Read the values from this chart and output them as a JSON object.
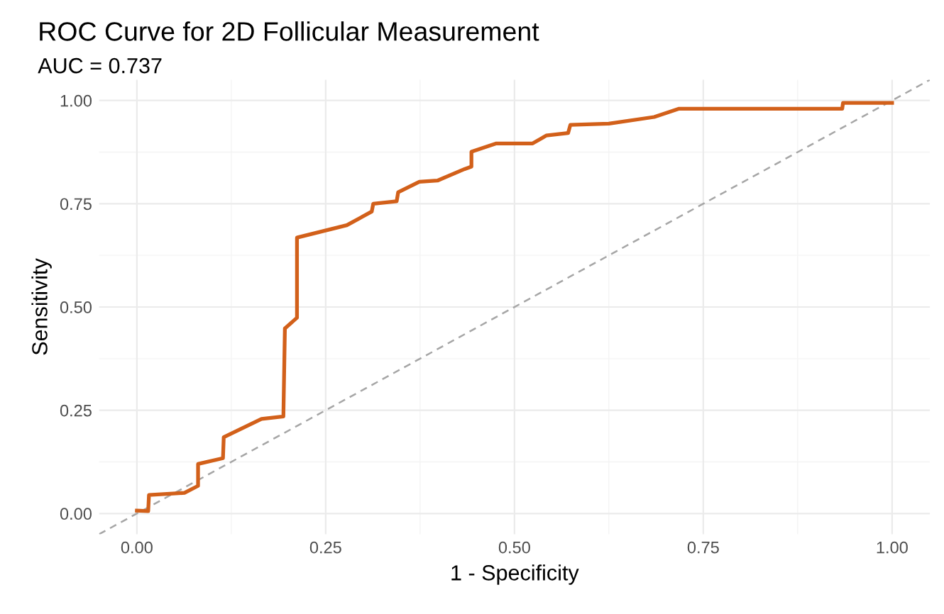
{
  "chart_data": {
    "type": "line",
    "title": "ROC Curve for 2D Follicular Measurement",
    "subtitle": "AUC = 0.737",
    "xlabel": "1 - Specificity",
    "ylabel": "Sensitivity",
    "series": [
      {
        "color": "#d2601a",
        "line_style": "solid",
        "x": [
          0,
          0.015,
          0.016,
          0.063,
          0.081,
          0.081,
          0.114,
          0.115,
          0.165,
          0.194,
          0.196,
          0.212,
          0.212,
          0.278,
          0.311,
          0.313,
          0.344,
          0.346,
          0.374,
          0.398,
          0.434,
          0.443,
          0.443,
          0.476,
          0.524,
          0.542,
          0.571,
          0.574,
          0.625,
          0.685,
          0.718,
          0.934,
          0.935,
          1.0
        ],
        "values": [
          0.007,
          0.006,
          0.045,
          0.05,
          0.067,
          0.12,
          0.134,
          0.185,
          0.229,
          0.235,
          0.448,
          0.474,
          0.668,
          0.698,
          0.731,
          0.75,
          0.756,
          0.778,
          0.803,
          0.806,
          0.834,
          0.84,
          0.876,
          0.896,
          0.896,
          0.915,
          0.921,
          0.941,
          0.944,
          0.96,
          0.98,
          0.98,
          0.994,
          0.994
        ]
      },
      {
        "color": "#a6a6a6",
        "line_style": "dashed",
        "x": [
          -0.05,
          1.05
        ],
        "values": [
          -0.05,
          1.05
        ]
      }
    ],
    "xlim": [
      -0.05,
      1.05
    ],
    "ylim": [
      -0.05,
      1.05
    ],
    "xticks": [
      {
        "value": 0,
        "label": "0.00"
      },
      0.25,
      {
        "value": 0.5,
        "label": "0.50"
      },
      0.75,
      {
        "value": 1,
        "label": "1.00"
      }
    ],
    "yticks": [
      {
        "value": 0,
        "label": "0.00"
      },
      0.25,
      {
        "value": 0.5,
        "label": "0.50"
      },
      0.75,
      {
        "value": 1,
        "label": "1.00"
      }
    ],
    "grid": true,
    "legend": false,
    "marker": "none"
  }
}
